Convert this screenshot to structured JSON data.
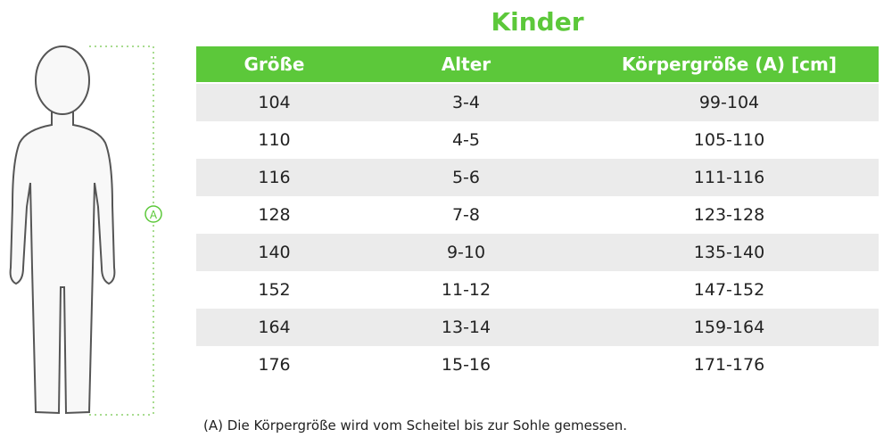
{
  "title": "Kinder",
  "figure": {
    "marker": "A"
  },
  "table": {
    "header": [
      "Größe",
      "Alter",
      "Körpergröße (A) [cm]"
    ],
    "rows": [
      [
        "104",
        "3-4",
        "99-104"
      ],
      [
        "110",
        "4-5",
        "105-110"
      ],
      [
        "116",
        "5-6",
        "111-116"
      ],
      [
        "128",
        "7-8",
        "123-128"
      ],
      [
        "140",
        "9-10",
        "135-140"
      ],
      [
        "152",
        "11-12",
        "147-152"
      ],
      [
        "164",
        "13-14",
        "159-164"
      ],
      [
        "176",
        "15-16",
        "171-176"
      ]
    ]
  },
  "footnote": "(A) Die Körpergröße wird vom Scheitel bis zur Sohle gemessen."
}
